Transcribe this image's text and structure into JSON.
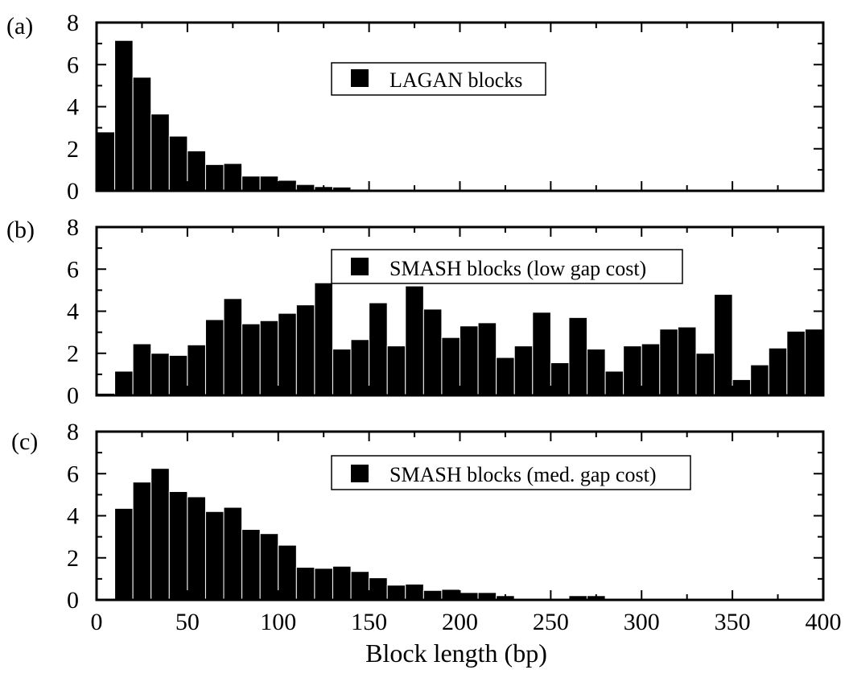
{
  "chart_data": [
    {
      "type": "bar",
      "panel_label": "(a)",
      "legend": "LAGAN blocks",
      "legend_position": "upper-center",
      "bin_width": 10,
      "x": [
        5,
        15,
        25,
        35,
        45,
        55,
        65,
        75,
        85,
        95,
        105,
        115,
        125,
        135,
        145,
        155,
        165,
        175,
        185,
        195,
        205
      ],
      "values": [
        2.8,
        7.15,
        5.4,
        3.65,
        2.6,
        1.9,
        1.25,
        1.3,
        0.7,
        0.7,
        0.5,
        0.3,
        0.2,
        0.18,
        0.08,
        0.03,
        0.02,
        0.02,
        0.03,
        0.03,
        0.05
      ],
      "xlim": [
        0,
        400
      ],
      "ylim": [
        0,
        8
      ],
      "yticks": [
        "0",
        "2",
        "4",
        "6",
        "8"
      ],
      "grid": false
    },
    {
      "type": "bar",
      "panel_label": "(b)",
      "legend": "SMASH blocks (low gap cost)",
      "legend_position": "upper-center",
      "bin_width": 10,
      "x": [
        5,
        15,
        25,
        35,
        45,
        55,
        65,
        75,
        85,
        95,
        105,
        115,
        125,
        135,
        145,
        155,
        165,
        175,
        185,
        195,
        205,
        215,
        225,
        235,
        245,
        255,
        265,
        275,
        285,
        295,
        305,
        315,
        325,
        335,
        345,
        355,
        365,
        375,
        385,
        395
      ],
      "values": [
        0.1,
        1.15,
        2.45,
        2.0,
        1.9,
        2.4,
        3.6,
        4.6,
        3.4,
        3.55,
        3.9,
        4.3,
        5.35,
        2.2,
        2.65,
        4.4,
        2.35,
        5.2,
        4.1,
        2.75,
        3.3,
        3.45,
        1.8,
        2.35,
        3.95,
        1.55,
        3.7,
        2.2,
        1.15,
        2.35,
        2.45,
        3.15,
        3.25,
        2.0,
        4.8,
        0.75,
        1.45,
        2.25,
        3.05,
        3.15
      ],
      "xlim": [
        0,
        400
      ],
      "ylim": [
        0,
        8
      ],
      "yticks": [
        "0",
        "2",
        "4",
        "6",
        "8"
      ],
      "grid": false
    },
    {
      "type": "bar",
      "panel_label": "(c)",
      "legend": "SMASH blocks (med. gap cost)",
      "legend_position": "upper-center",
      "bin_width": 10,
      "x": [
        15,
        25,
        35,
        45,
        55,
        65,
        75,
        85,
        95,
        105,
        115,
        125,
        135,
        145,
        155,
        165,
        175,
        185,
        195,
        205,
        215,
        225,
        235,
        245,
        255,
        265,
        275
      ],
      "values": [
        4.35,
        5.6,
        6.25,
        5.15,
        4.9,
        4.2,
        4.4,
        3.35,
        3.15,
        2.6,
        1.55,
        1.5,
        1.6,
        1.35,
        1.05,
        0.7,
        0.75,
        0.45,
        0.5,
        0.35,
        0.35,
        0.2,
        0.05,
        0.03,
        0.02,
        0.2,
        0.2
      ],
      "xlim": [
        0,
        400
      ],
      "ylim": [
        0,
        8
      ],
      "yticks": [
        "0",
        "2",
        "4",
        "6",
        "8"
      ],
      "xticks": [
        "0",
        "50",
        "100",
        "150",
        "200",
        "250",
        "300",
        "350",
        "400"
      ],
      "xlabel": "Block length (bp)",
      "grid": false
    }
  ]
}
